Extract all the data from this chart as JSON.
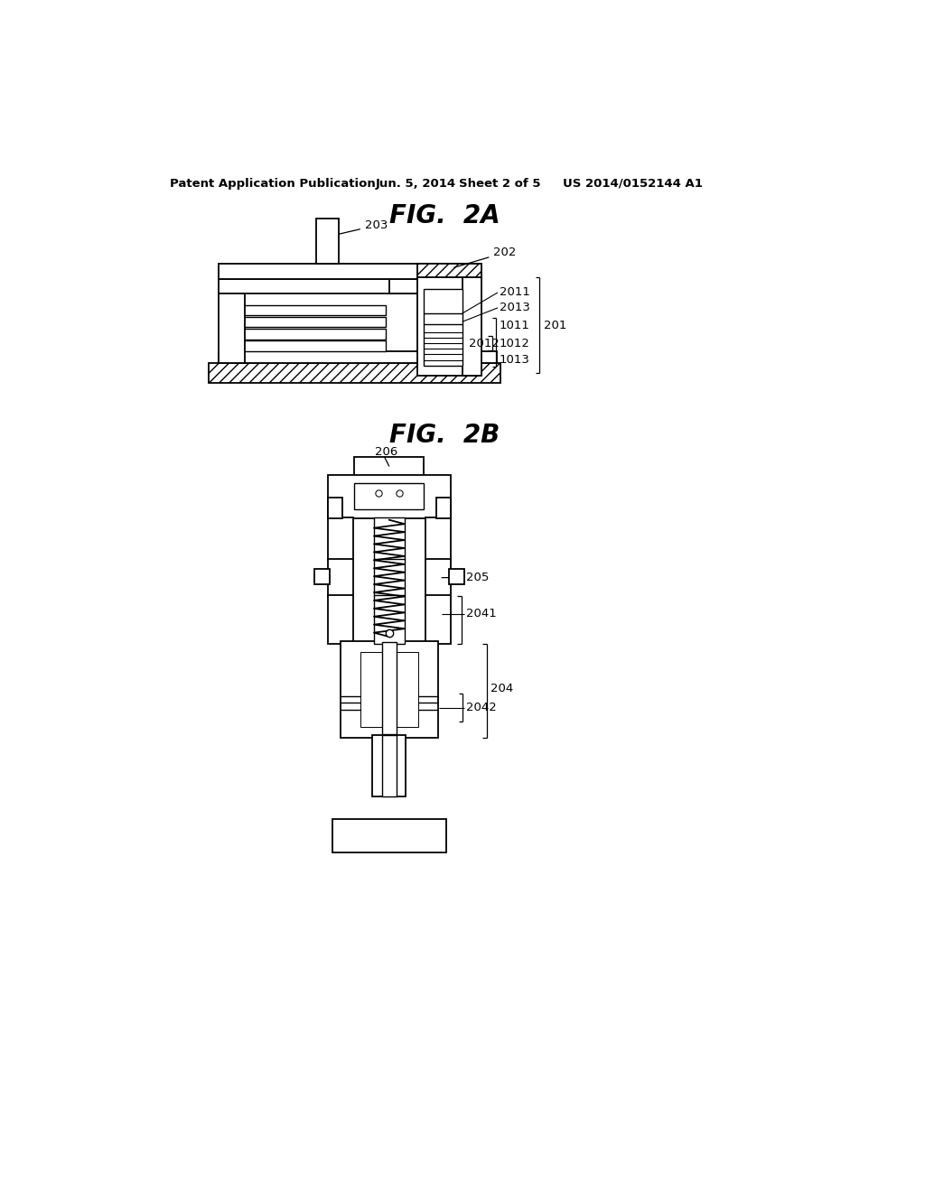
{
  "bg_color": "#ffffff",
  "line_color": "#000000",
  "header_text": "Patent Application Publication",
  "header_date": "Jun. 5, 2014",
  "header_sheet": "Sheet 2 of 5",
  "header_patent": "US 2014/0152144 A1",
  "fig2a_title": "FIG.  2A",
  "fig2b_title": "FIG.  2B"
}
